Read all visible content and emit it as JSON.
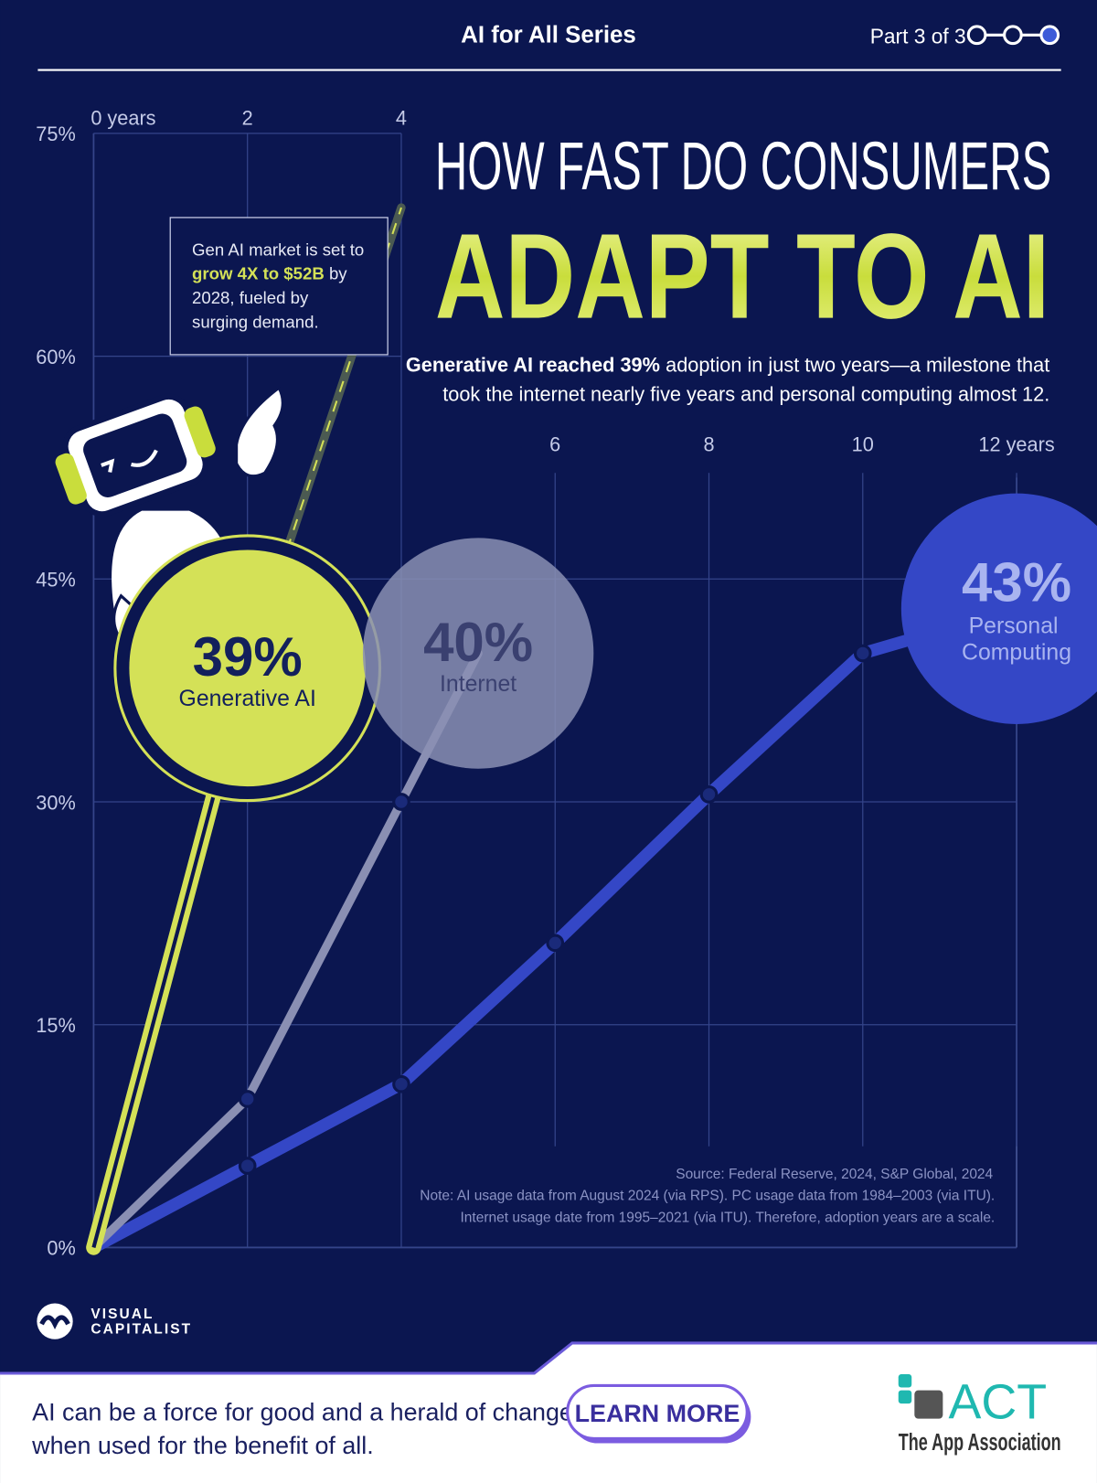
{
  "header": {
    "series_title": "AI for All Series",
    "part": "Part 3 of 3"
  },
  "chart_data": {
    "type": "line",
    "title": "HOW FAST DO CONSUMERS",
    "title_emphasis": "ADAPT TO AI",
    "subtitle_bold": "Generative AI reached 39%",
    "subtitle_lines": [
      "adoption in just two years—a milestone that",
      "took the internet nearly five years and personal computing almost 12."
    ],
    "xlim": [
      0,
      12
    ],
    "xticks": [
      {
        "value": 0,
        "label": "0 years"
      },
      2,
      4,
      6,
      8,
      10,
      {
        "value": 12,
        "label": "12 years"
      }
    ],
    "ylim": [
      0,
      75
    ],
    "yticks": [
      {
        "value": 0,
        "label": "0%"
      },
      {
        "value": 15,
        "label": "15%"
      },
      {
        "value": 30,
        "label": "30%"
      },
      {
        "value": 45,
        "label": "45%"
      },
      {
        "value": 60,
        "label": "60%"
      },
      {
        "value": 75,
        "label": "75%"
      }
    ],
    "grid": true,
    "series": [
      {
        "name": "Generative AI",
        "color": "#d4e157",
        "x": [
          0,
          2
        ],
        "values": [
          0,
          39
        ],
        "value_labels": [
          null,
          "39%"
        ]
      },
      {
        "name": "Internet",
        "color": "#8a8fb3",
        "x": [
          0,
          2,
          4,
          5
        ],
        "values": [
          0,
          10,
          30,
          40
        ],
        "value_labels": [
          null,
          null,
          null,
          "40%"
        ]
      },
      {
        "name": "Personal Computing",
        "color": "#3447c6",
        "x": [
          0,
          2,
          4,
          6,
          8,
          10,
          12
        ],
        "values": [
          0,
          5.5,
          11,
          20.5,
          30.5,
          40,
          43
        ],
        "value_labels": [
          null,
          null,
          null,
          null,
          null,
          null,
          "43%"
        ]
      }
    ],
    "projection": {
      "x": [
        2,
        4
      ],
      "values": [
        39,
        70
      ]
    },
    "annotation": [
      {
        "text": "Gen AI market is set to"
      },
      {
        "highlight": "grow 4X to $52B",
        "text": " by"
      },
      {
        "text": "2028, fueled by"
      },
      {
        "text": "surging demand."
      }
    ],
    "source": "Source: Federal Reserve, 2024, S&P Global, 2024",
    "note": [
      "Note: AI usage data from August 2024 (via RPS). PC usage data from 1984–2003 (via ITU).",
      "Internet usage date from 1995–2021 (via ITU). Therefore, adoption years are a scale."
    ]
  },
  "branding": {
    "logo": [
      "VISUAL",
      "CAPITALIST"
    ]
  },
  "footer": {
    "message": [
      "AI can be a force for good and a herald of change",
      "when used for the benefit of all."
    ],
    "button": "LEARN MORE",
    "sponsor": "ACT",
    "sponsor_name": "The App Association"
  }
}
